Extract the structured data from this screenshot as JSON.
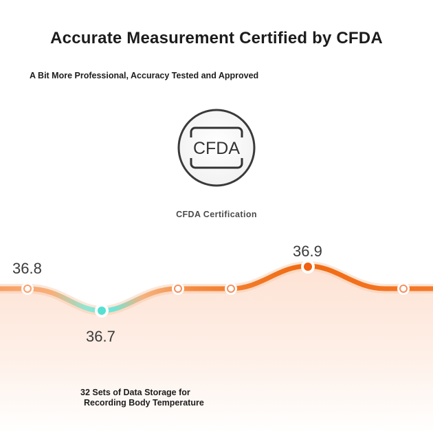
{
  "title": "Accurate Measurement Certified by CFDA",
  "subtitle": "A Bit More Professional, Accuracy Tested and Approved",
  "logo": {
    "text": "CFDA",
    "icon": "cfda-logo-icon"
  },
  "certification_label": "CFDA Certification",
  "temperature_curve": {
    "labels": [
      "36.8",
      "36.7",
      "36.9"
    ],
    "colors": {
      "line": "#f47a2c",
      "low_segment": "#6ee6d8",
      "fill_top": "#fde7dc"
    }
  },
  "storage_text": {
    "line1": "32 Sets of Data Storage for",
    "line2": "Recording Body Temperature"
  }
}
